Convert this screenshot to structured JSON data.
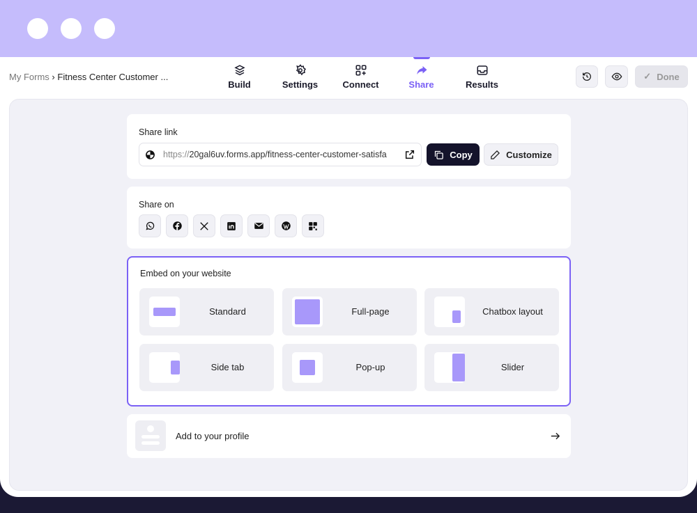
{
  "breadcrumb": {
    "root": "My Forms",
    "separator": "›",
    "current": "Fitness Center Customer ..."
  },
  "tabs": [
    {
      "label": "Build",
      "icon": "layers-icon"
    },
    {
      "label": "Settings",
      "icon": "gear-icon"
    },
    {
      "label": "Connect",
      "icon": "apps-plus-icon"
    },
    {
      "label": "Share",
      "icon": "share-arrow-icon",
      "active": true
    },
    {
      "label": "Results",
      "icon": "inbox-icon"
    }
  ],
  "header_actions": {
    "done": "Done"
  },
  "share_link": {
    "title": "Share link",
    "url_prefix": "https://",
    "url_rest": "20gal6uv.forms.app/fitness-center-customer-satisfa",
    "copy": "Copy",
    "customize": "Customize"
  },
  "share_on": {
    "title": "Share on",
    "items": [
      "whatsapp-icon",
      "facebook-icon",
      "x-icon",
      "linkedin-icon",
      "email-icon",
      "wordpress-icon",
      "qr-code-icon"
    ]
  },
  "embed": {
    "title": "Embed on your website",
    "options": [
      "Standard",
      "Full-page",
      "Chatbox layout",
      "Side tab",
      "Pop-up",
      "Slider"
    ]
  },
  "profile": {
    "label": "Add to your profile"
  },
  "colors": {
    "accent": "#7b61f5",
    "top_band": "#c5bcfc",
    "dark": "#14132b"
  }
}
